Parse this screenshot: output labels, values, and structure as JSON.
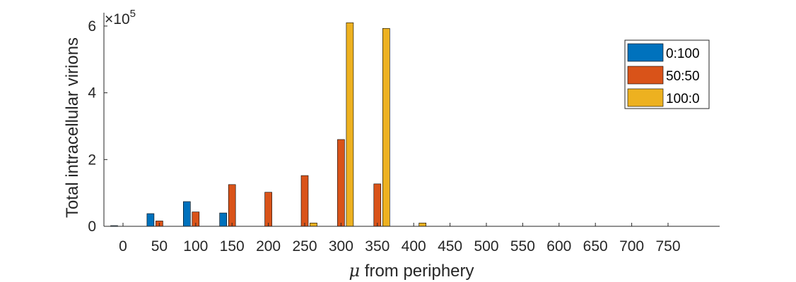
{
  "chart_data": {
    "type": "bar",
    "title": "",
    "xlabel_symbol": "μ",
    "xlabel_text": " from periphery",
    "ylabel": "Total intracellular virions",
    "y_exponent_base": "×10",
    "y_exponent_power": "5",
    "categories": [
      "0",
      "50",
      "100",
      "150",
      "200",
      "250",
      "300",
      "350",
      "400",
      "450",
      "500",
      "550",
      "600",
      "650",
      "700",
      "750"
    ],
    "ylim": [
      0,
      6.4
    ],
    "y_ticks": [
      0,
      2,
      4,
      6
    ],
    "y_tick_labels": [
      "0",
      "2",
      "4",
      "6"
    ],
    "series": [
      {
        "name": "0:100",
        "color": "#0072BD",
        "values": [
          0.02,
          0.38,
          0.74,
          0.4,
          0,
          0,
          0,
          0,
          0,
          0,
          0,
          0,
          0,
          0,
          0,
          0
        ]
      },
      {
        "name": "50:50",
        "color": "#D95319",
        "values": [
          0,
          0.16,
          0.43,
          1.25,
          1.02,
          1.52,
          2.6,
          1.27,
          0,
          0,
          0,
          0,
          0,
          0,
          0,
          0
        ]
      },
      {
        "name": "100:0",
        "color": "#EDB120",
        "values": [
          0,
          0,
          0,
          0,
          0,
          0.1,
          6.1,
          5.93,
          0.1,
          0,
          0,
          0,
          0,
          0,
          0,
          0
        ]
      }
    ],
    "legend_position": "top-right",
    "grid": false
  }
}
